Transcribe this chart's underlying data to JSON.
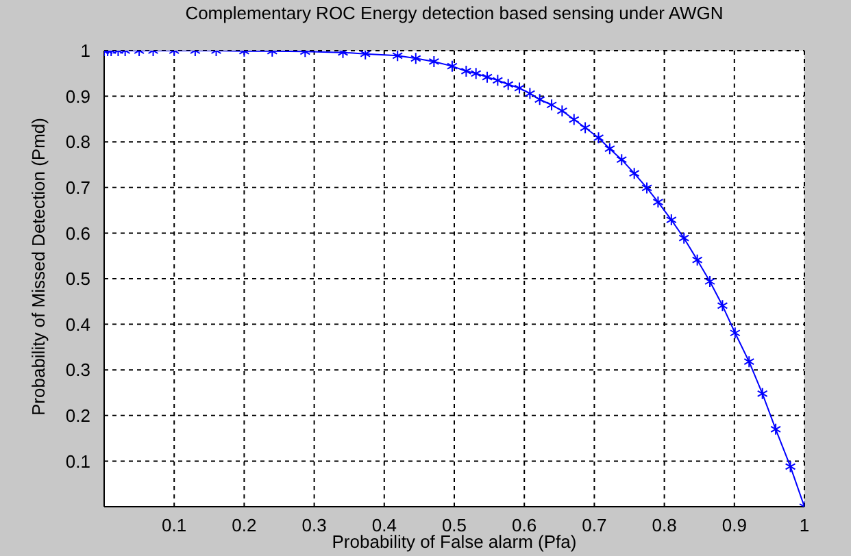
{
  "chart_data": {
    "type": "line",
    "title": "Complementary ROC Energy detection based sensing under AWGN",
    "xlabel": "Probability of False alarm (Pfa)",
    "ylabel": "Probability of Missed Detection (Pmd)",
    "series": [
      {
        "color": "#0000ff",
        "x": [
          0,
          0.005,
          0.01,
          0.02,
          0.03,
          0.05,
          0.07,
          0.1,
          0.13,
          0.16,
          0.2,
          0.24,
          0.287,
          0.341,
          0.373,
          0.419,
          0.445,
          0.471,
          0.497,
          0.517,
          0.531,
          0.547,
          0.562,
          0.577,
          0.593,
          0.608,
          0.622,
          0.639,
          0.654,
          0.671,
          0.687,
          0.706,
          0.722,
          0.739,
          0.757,
          0.775,
          0.791,
          0.81,
          0.828,
          0.847,
          0.865,
          0.883,
          0.901,
          0.921,
          0.94,
          0.959,
          0.98,
          1
        ],
        "values": [
          1,
          1,
          1,
          1,
          1,
          1,
          1,
          1,
          1,
          1,
          0.999,
          0.999,
          0.998,
          0.996,
          0.993,
          0.989,
          0.983,
          0.976,
          0.966,
          0.955,
          0.95,
          0.942,
          0.935,
          0.926,
          0.918,
          0.906,
          0.893,
          0.881,
          0.868,
          0.849,
          0.831,
          0.809,
          0.785,
          0.761,
          0.731,
          0.699,
          0.668,
          0.629,
          0.589,
          0.541,
          0.494,
          0.441,
          0.381,
          0.318,
          0.248,
          0.17,
          0.088,
          0
        ]
      }
    ],
    "xlim": [
      0,
      1
    ],
    "ylim": [
      0,
      1
    ],
    "xticks": [
      {
        "value": 0,
        "label": null
      },
      0.1,
      0.2,
      0.3,
      0.4,
      0.5,
      0.6,
      0.7,
      0.8,
      0.9,
      1
    ],
    "yticks": [
      {
        "value": 0,
        "label": null
      },
      0.1,
      0.2,
      0.3,
      0.4,
      0.5,
      0.6,
      0.7,
      0.8,
      0.9,
      1
    ],
    "grid": true,
    "marker": "cross",
    "line_style": "solid",
    "legend": false
  }
}
